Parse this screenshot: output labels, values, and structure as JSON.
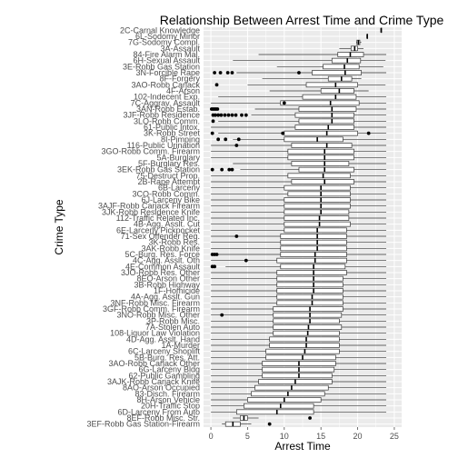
{
  "chart_data": {
    "type": "boxplot",
    "title": "Relationship Between Arrest Time and Crime Type",
    "xlabel": "Arrest Time",
    "ylabel": "Crime Type",
    "xlim": [
      -1,
      26
    ],
    "x_ticks": [
      0,
      5,
      10,
      15,
      20,
      25
    ],
    "grid": true,
    "legend": "none",
    "colors": {
      "panel": "#ebebeb",
      "grid": "#ffffff",
      "box_fill": "#ffffff",
      "box_stroke": "#333333",
      "median": "#000000",
      "outlier": "#000000",
      "text": "#000000",
      "tick_text": "#4d4d4d"
    },
    "categories": [
      "2C-Carnal Knowledge",
      "6L-Sodomy Minor",
      "7G-Sodomy Compl.",
      "3A-Assault",
      "84-Fire Alarm Mal.",
      "6H-Sexual Assault",
      "3E-Robb Gas Station",
      "3N-Forcible Rape",
      "8F-Forgery",
      "3AO-Robb Carjack",
      "4F-Arson",
      "102-Indecent Exp.",
      "7C-Aggrav. Assault",
      "3AN-Robb Estab.",
      "3JF-Robb Residence",
      "3LO-Robb Comm.",
      "61-Public Intox.",
      "3K-Robb Street",
      "8I-Pimping",
      "116-Public Urination",
      "3GO-Robb Comm. Firearm",
      "5A-Burglary",
      "5F-Burglary Res.",
      "3EK-Robb Gas Station",
      "75-Destruct Prop.",
      "2B-Rape Attempt",
      "6B-Larceny",
      "3CO-Robb Comm.",
      "6J-Larceny Bike",
      "3AJF-Robb Carjack Firearm",
      "3JK-Robb Residence Knife",
      "112-Traffic Related Inc.",
      "4B-Agg. Asslt. Cut",
      "6E-Larceny Pickpocket",
      "71-Sex Offender Reg.",
      "3K-Robb Res.",
      "3AK-Robb Knife",
      "5C-Burg. Res. Force",
      "4C-Agg. Asslt. Oth",
      "4E-Common Assault",
      "3JO-Robb Res. Other",
      "8EO-Arson Other",
      "3B-Robb Highway",
      "1F-Homicide",
      "4A-Agg. Asslt. Gun",
      "3NF-Robb Misc. Firearm",
      "3GF-Robb Comm. Firearm",
      "3NO-Robb Misc. Other",
      "3P-Robb Misc.",
      "7A-Stolen Auto",
      "108-Liquor Law Violation",
      "4D-Agg. Asslt. Hand",
      "1A-Murder",
      "6C-Larceny Shoplift",
      "5B-Burg. Res. Att.",
      "3AO-Robb Carjack Other",
      "6G-Larceny Bldg",
      "62-Public Gambling",
      "3AJK-Robb Carjack Knife",
      "8AO-Arson Occupied",
      "83-Disch. Firearm",
      "8H-Arson Vehicle",
      "20H-Traffic Stop",
      "6D-Larceny From Auto",
      "8EF-Robb Misc. Str.",
      "3EF-Robb Gas Station-Firearm"
    ],
    "series": [
      {
        "min": 23.2,
        "q1": 23.2,
        "median": 23.2,
        "q3": 23.2,
        "max": 23.2,
        "outliers": []
      },
      {
        "min": 21.3,
        "q1": 21.3,
        "median": 21.3,
        "q3": 21.3,
        "max": 21.3,
        "outliers": []
      },
      {
        "min": 19.8,
        "q1": 19.9,
        "median": 20.1,
        "q3": 20.3,
        "max": 20.5,
        "outliers": []
      },
      {
        "min": 17.5,
        "q1": 19.1,
        "median": 19.6,
        "q3": 20.0,
        "max": 20.8,
        "outliers": []
      },
      {
        "min": 6.5,
        "q1": 17.3,
        "median": 19.0,
        "q3": 20.8,
        "max": 23.9,
        "outliers": []
      },
      {
        "min": 3.0,
        "q1": 16.5,
        "median": 18.6,
        "q3": 20.4,
        "max": 23.8,
        "outliers": []
      },
      {
        "min": 9.0,
        "q1": 15.3,
        "median": 18.2,
        "q3": 20.2,
        "max": 23.5,
        "outliers": []
      },
      {
        "min": 3.5,
        "q1": 13.8,
        "median": 18.3,
        "q3": 20.5,
        "max": 23.9,
        "outliers": [
          0.5,
          1.3,
          2.3,
          2.9,
          12.0
        ]
      },
      {
        "min": 7.0,
        "q1": 16.0,
        "median": 17.8,
        "q3": 19.2,
        "max": 20.5,
        "outliers": []
      },
      {
        "min": 5.0,
        "q1": 13.0,
        "median": 17.0,
        "q3": 20.0,
        "max": 23.8,
        "outliers": [
          0.8
        ]
      },
      {
        "min": 8.0,
        "q1": 15.0,
        "median": 17.5,
        "q3": 19.5,
        "max": 21.5,
        "outliers": []
      },
      {
        "min": 1.0,
        "q1": 12.5,
        "median": 17.0,
        "q3": 19.8,
        "max": 23.9,
        "outliers": []
      },
      {
        "min": 0.0,
        "q1": 9.5,
        "median": 16.3,
        "q3": 20.2,
        "max": 23.9,
        "outliers": [
          10.0
        ]
      },
      {
        "min": 6.0,
        "q1": 12.0,
        "median": 16.5,
        "q3": 19.8,
        "max": 23.9,
        "outliers": [
          0.1,
          0.3,
          0.5,
          0.7,
          0.9
        ]
      },
      {
        "min": 5.5,
        "q1": 11.5,
        "median": 16.5,
        "q3": 19.5,
        "max": 23.9,
        "outliers": [
          0.3,
          0.6,
          1.0,
          1.4,
          1.9,
          2.4,
          2.9,
          3.4,
          4.2,
          4.8
        ]
      },
      {
        "min": 1.0,
        "q1": 12.0,
        "median": 16.5,
        "q3": 19.5,
        "max": 23.9,
        "outliers": [
          0.3
        ]
      },
      {
        "min": 0.0,
        "q1": 11.5,
        "median": 16.0,
        "q3": 19.5,
        "max": 23.9,
        "outliers": []
      },
      {
        "min": 1.0,
        "q1": 10.0,
        "median": 15.8,
        "q3": 20.0,
        "max": 23.9,
        "outliers": [
          0.2,
          9.8,
          21.5
        ]
      },
      {
        "min": 3.0,
        "q1": 10.0,
        "median": 14.5,
        "q3": 18.0,
        "max": 23.9,
        "outliers": [
          1.0,
          2.0,
          3.8
        ]
      },
      {
        "min": 0.0,
        "q1": 11.0,
        "median": 15.8,
        "q3": 19.2,
        "max": 23.9,
        "outliers": [
          3.5
        ]
      },
      {
        "min": 0.0,
        "q1": 10.5,
        "median": 15.5,
        "q3": 19.5,
        "max": 23.9,
        "outliers": []
      },
      {
        "min": 0.0,
        "q1": 10.5,
        "median": 15.5,
        "q3": 19.5,
        "max": 23.9,
        "outliers": []
      },
      {
        "min": 3.0,
        "q1": 11.0,
        "median": 15.5,
        "q3": 18.8,
        "max": 23.9,
        "outliers": []
      },
      {
        "min": 4.0,
        "q1": 12.0,
        "median": 15.5,
        "q3": 19.5,
        "max": 23.9,
        "outliers": [
          0.2,
          1.5,
          2.5,
          2.9
        ]
      },
      {
        "min": 0.0,
        "q1": 10.5,
        "median": 15.3,
        "q3": 19.0,
        "max": 23.9,
        "outliers": []
      },
      {
        "min": 0.0,
        "q1": 11.0,
        "median": 15.5,
        "q3": 19.5,
        "max": 23.9,
        "outliers": []
      },
      {
        "min": 0.0,
        "q1": 10.0,
        "median": 15.0,
        "q3": 19.0,
        "max": 23.9,
        "outliers": []
      },
      {
        "min": 0.0,
        "q1": 10.5,
        "median": 15.0,
        "q3": 19.0,
        "max": 23.9,
        "outliers": []
      },
      {
        "min": 0.0,
        "q1": 10.0,
        "median": 15.0,
        "q3": 19.0,
        "max": 23.9,
        "outliers": []
      },
      {
        "min": 0.0,
        "q1": 10.0,
        "median": 15.0,
        "q3": 19.0,
        "max": 23.9,
        "outliers": []
      },
      {
        "min": 0.0,
        "q1": 10.0,
        "median": 15.0,
        "q3": 18.8,
        "max": 23.9,
        "outliers": []
      },
      {
        "min": 0.0,
        "q1": 10.0,
        "median": 14.8,
        "q3": 18.8,
        "max": 23.9,
        "outliers": []
      },
      {
        "min": 0.0,
        "q1": 10.0,
        "median": 14.8,
        "q3": 19.0,
        "max": 23.9,
        "outliers": []
      },
      {
        "min": 0.0,
        "q1": 10.0,
        "median": 14.5,
        "q3": 18.5,
        "max": 23.9,
        "outliers": []
      },
      {
        "min": 0.0,
        "q1": 9.5,
        "median": 14.5,
        "q3": 18.5,
        "max": 23.9,
        "outliers": [
          3.5
        ]
      },
      {
        "min": 0.0,
        "q1": 9.5,
        "median": 14.5,
        "q3": 18.5,
        "max": 23.9,
        "outliers": []
      },
      {
        "min": 0.0,
        "q1": 9.5,
        "median": 14.5,
        "q3": 18.5,
        "max": 23.9,
        "outliers": []
      },
      {
        "min": 0.0,
        "q1": 9.5,
        "median": 14.2,
        "q3": 18.5,
        "max": 23.9,
        "outliers": [
          0.2,
          0.5,
          0.8
        ]
      },
      {
        "min": 0.0,
        "q1": 9.0,
        "median": 14.2,
        "q3": 18.5,
        "max": 23.9,
        "outliers": [
          4.8
        ]
      },
      {
        "min": 2.0,
        "q1": 9.5,
        "median": 14.0,
        "q3": 18.3,
        "max": 23.9,
        "outliers": [
          0.2,
          0.5
        ]
      },
      {
        "min": 0.0,
        "q1": 9.0,
        "median": 14.0,
        "q3": 18.5,
        "max": 23.9,
        "outliers": []
      },
      {
        "min": 0.0,
        "q1": 9.0,
        "median": 14.0,
        "q3": 18.0,
        "max": 23.9,
        "outliers": []
      },
      {
        "min": 0.0,
        "q1": 9.0,
        "median": 14.0,
        "q3": 18.0,
        "max": 23.9,
        "outliers": []
      },
      {
        "min": 0.0,
        "q1": 9.0,
        "median": 14.0,
        "q3": 18.0,
        "max": 23.9,
        "outliers": []
      },
      {
        "min": 0.0,
        "q1": 9.0,
        "median": 13.8,
        "q3": 18.0,
        "max": 23.9,
        "outliers": []
      },
      {
        "min": 0.0,
        "q1": 9.0,
        "median": 13.8,
        "q3": 18.0,
        "max": 23.9,
        "outliers": []
      },
      {
        "min": 0.0,
        "q1": 8.5,
        "median": 13.5,
        "q3": 18.0,
        "max": 23.9,
        "outliers": []
      },
      {
        "min": 0.0,
        "q1": 8.5,
        "median": 13.5,
        "q3": 17.8,
        "max": 23.9,
        "outliers": [
          1.5
        ]
      },
      {
        "min": 0.0,
        "q1": 8.5,
        "median": 13.5,
        "q3": 17.5,
        "max": 23.9,
        "outliers": []
      },
      {
        "min": 0.0,
        "q1": 8.5,
        "median": 13.3,
        "q3": 17.8,
        "max": 23.9,
        "outliers": []
      },
      {
        "min": 0.0,
        "q1": 8.5,
        "median": 13.2,
        "q3": 17.5,
        "max": 23.9,
        "outliers": []
      },
      {
        "min": 0.0,
        "q1": 8.0,
        "median": 13.0,
        "q3": 17.5,
        "max": 23.9,
        "outliers": []
      },
      {
        "min": 0.0,
        "q1": 8.0,
        "median": 13.0,
        "q3": 17.5,
        "max": 23.9,
        "outliers": []
      },
      {
        "min": 0.0,
        "q1": 7.5,
        "median": 12.8,
        "q3": 17.5,
        "max": 23.9,
        "outliers": []
      },
      {
        "min": 0.0,
        "q1": 7.5,
        "median": 12.5,
        "q3": 17.0,
        "max": 23.9,
        "outliers": []
      },
      {
        "min": 0.0,
        "q1": 7.0,
        "median": 12.0,
        "q3": 17.0,
        "max": 23.9,
        "outliers": []
      },
      {
        "min": 0.0,
        "q1": 7.0,
        "median": 12.0,
        "q3": 16.8,
        "max": 23.9,
        "outliers": []
      },
      {
        "min": 0.0,
        "q1": 7.0,
        "median": 12.0,
        "q3": 16.5,
        "max": 23.9,
        "outliers": []
      },
      {
        "min": 0.0,
        "q1": 6.5,
        "median": 11.5,
        "q3": 16.5,
        "max": 23.9,
        "outliers": []
      },
      {
        "min": 0.0,
        "q1": 6.0,
        "median": 11.0,
        "q3": 16.0,
        "max": 23.9,
        "outliers": []
      },
      {
        "min": 0.0,
        "q1": 5.5,
        "median": 10.5,
        "q3": 15.5,
        "max": 23.9,
        "outliers": []
      },
      {
        "min": 0.0,
        "q1": 5.0,
        "median": 10.0,
        "q3": 15.0,
        "max": 23.9,
        "outliers": []
      },
      {
        "min": 0.0,
        "q1": 4.5,
        "median": 9.5,
        "q3": 14.0,
        "max": 23.9,
        "outliers": []
      },
      {
        "min": 0.0,
        "q1": 3.5,
        "median": 9.0,
        "q3": 14.0,
        "max": 23.9,
        "outliers": []
      },
      {
        "min": 3.0,
        "q1": 4.0,
        "median": 4.5,
        "q3": 5.0,
        "max": 6.5,
        "outliers": [
          13.5
        ]
      },
      {
        "min": 1.5,
        "q1": 2.0,
        "median": 3.0,
        "q3": 4.0,
        "max": 5.5,
        "outliers": [
          8.0
        ]
      }
    ]
  }
}
